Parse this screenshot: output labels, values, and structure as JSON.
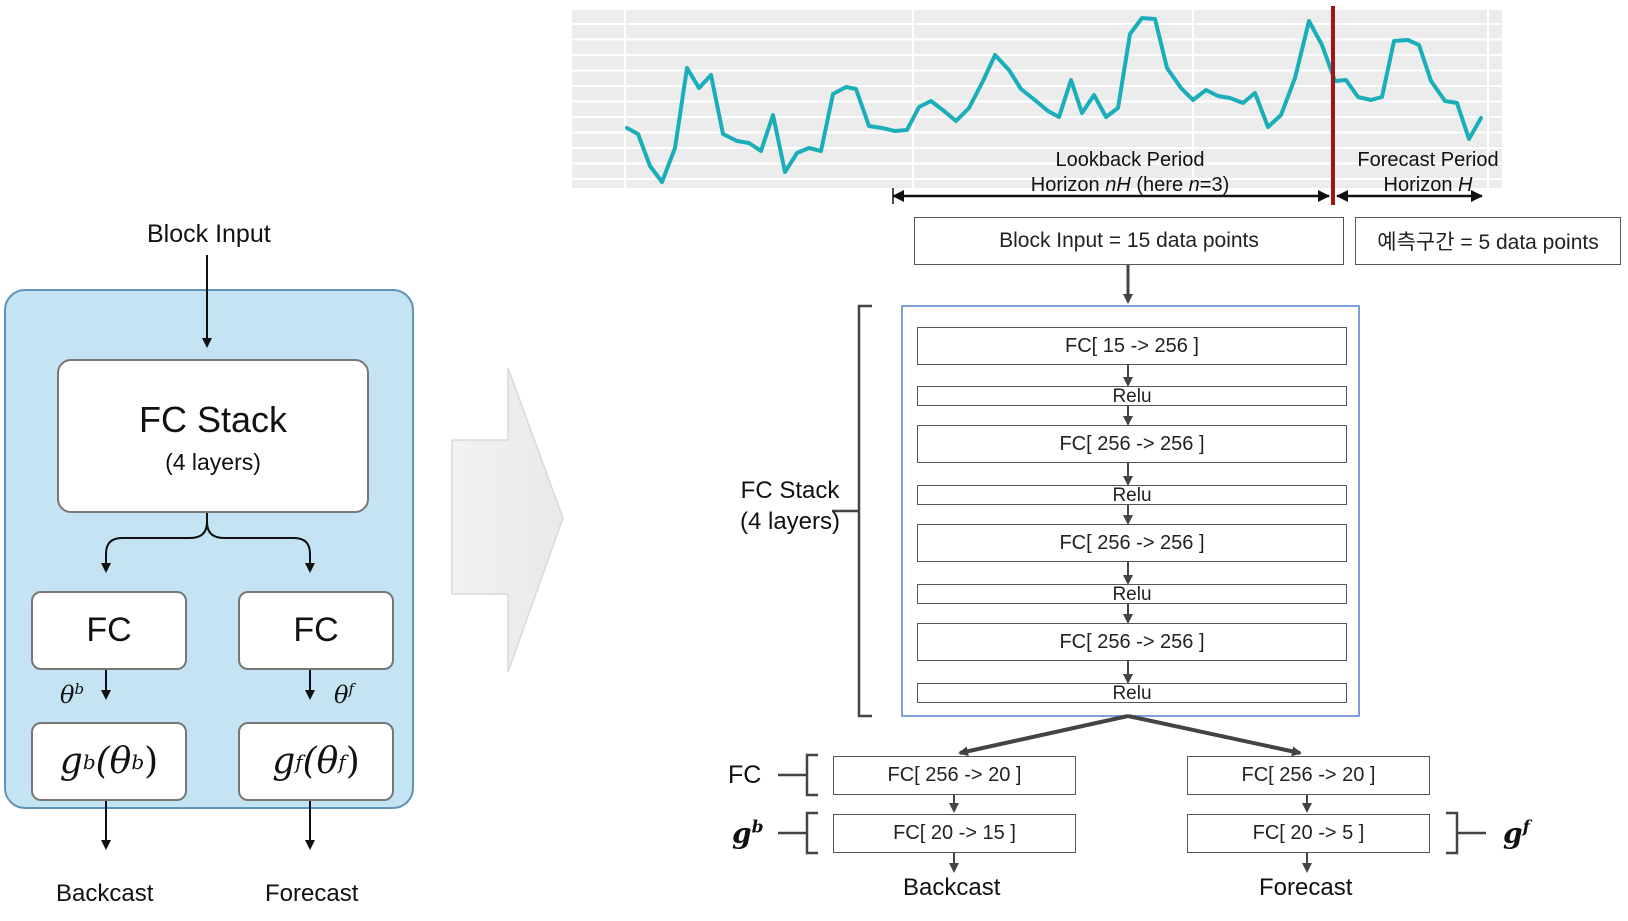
{
  "left_block": {
    "input_label": "Block Input",
    "fc_stack_title": "FC Stack",
    "fc_stack_sub": "(4 layers)",
    "fc_left": "FC",
    "fc_right": "FC",
    "theta_b": "θ",
    "theta_b_sup": "b",
    "theta_f": "θ",
    "theta_f_sup": "f",
    "g_b": {
      "g": "g",
      "sup": "b",
      "open": "(θ",
      "sup2": "b",
      "close": ")"
    },
    "g_f": {
      "g": "g",
      "sup": "f",
      "open": "(θ",
      "sup2": "f",
      "close": ")"
    },
    "backcast": "Backcast",
    "forecast": "Forecast",
    "colors": {
      "panel": "#c5e4f3",
      "panel_border": "#5f93b8"
    }
  },
  "timeseries": {
    "lookback_line1": "Lookback Period",
    "lookback_line2_pre": "Horizon ",
    "lookback_line2_var": "nH",
    "lookback_line2_mid": " (here ",
    "lookback_line2_var2": "n",
    "lookback_line2_post": "=3)",
    "forecast_line1": "Forecast Period",
    "forecast_line2_pre": "Horizon ",
    "forecast_line2_var": "H",
    "colors": {
      "line": "#1aaeba",
      "divider": "#a31515",
      "grid": "#e6e6e6"
    }
  },
  "right_block": {
    "block_input": "Block Input = 15 data points",
    "forecast_window": "예측구간 = 5 data points",
    "stack_label_1": "FC Stack",
    "stack_label_2": "(4 layers)",
    "layers": [
      "FC[ 15 -> 256 ]",
      "Relu",
      "FC[ 256 -> 256 ]",
      "Relu",
      "FC[ 256 -> 256 ]",
      "Relu",
      "FC[ 256 -> 256 ]",
      "Relu"
    ],
    "fc_label": "FC",
    "gb_label": "g",
    "gb_sup": "b",
    "gf_label": "g",
    "gf_sup": "f",
    "left_fc": "FC[ 256 -> 20 ]",
    "left_g": "FC[ 20 -> 15 ]",
    "right_fc": "FC[ 256 -> 20 ]",
    "right_g": "FC[ 20 -> 5 ]",
    "backcast": "Backcast",
    "forecast": "Forecast",
    "colors": {
      "stack_border": "#7f9fd9"
    }
  }
}
